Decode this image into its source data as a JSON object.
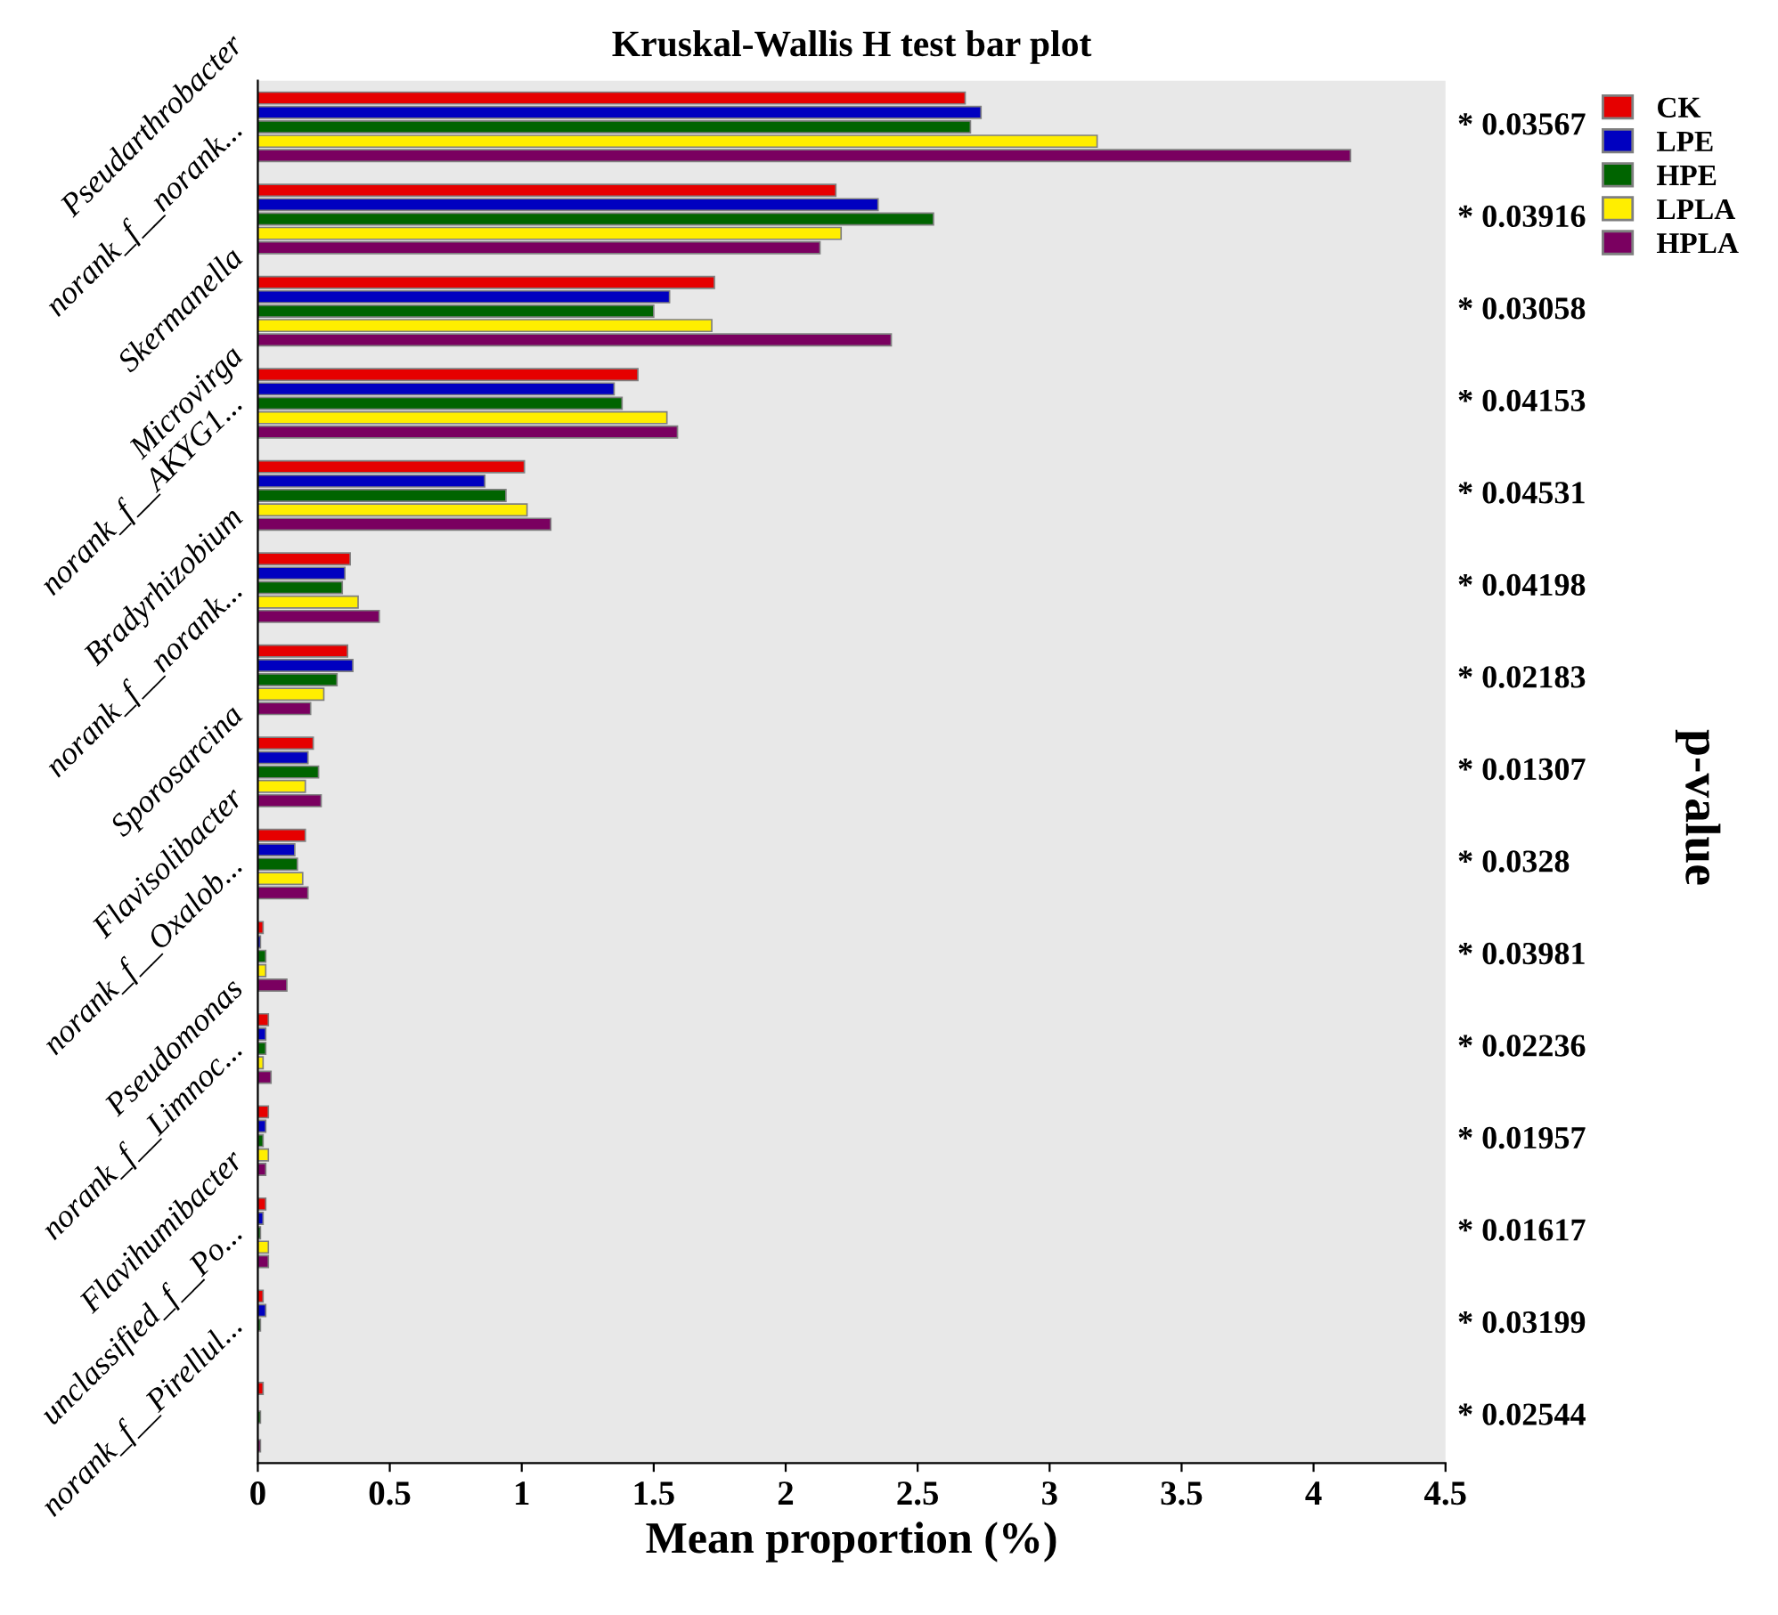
{
  "chart_data": {
    "type": "bar",
    "orientation": "horizontal",
    "title": "Kruskal-Wallis H test bar plot",
    "xlabel": "Mean proportion (%)",
    "y2label": "p-value",
    "categories": [
      "Pseudarthrobacter",
      "norank_f__norank...",
      "Skermanella",
      "Microvirga",
      "norank_f__AKYG1...",
      "Bradyrhizobium",
      "norank_f__norank...",
      "Sporosarcina",
      "Flavisolibacter",
      "norank_f__Oxalob...",
      "Pseudomonas",
      "norank_f__Limnoc...",
      "Flavihumibacter",
      "unclassified_f__Po...",
      "norank_f__Pirellul..."
    ],
    "series": [
      {
        "name": "CK",
        "color": "#e60000",
        "values": [
          2.68,
          2.19,
          1.73,
          1.44,
          1.01,
          0.35,
          0.34,
          0.21,
          0.18,
          0.02,
          0.04,
          0.04,
          0.03,
          0.02,
          0.02
        ]
      },
      {
        "name": "LPE",
        "color": "#0000c0",
        "values": [
          2.74,
          2.35,
          1.56,
          1.35,
          0.86,
          0.33,
          0.36,
          0.19,
          0.14,
          0.01,
          0.03,
          0.03,
          0.02,
          0.03,
          null
        ]
      },
      {
        "name": "HPE",
        "color": "#006400",
        "values": [
          2.7,
          2.56,
          1.5,
          1.38,
          0.94,
          0.32,
          0.3,
          0.23,
          0.15,
          0.03,
          0.03,
          0.02,
          0.01,
          0.01,
          0.01
        ]
      },
      {
        "name": "LPLA",
        "color": "#ffee00",
        "values": [
          3.18,
          2.21,
          1.72,
          1.55,
          1.02,
          0.38,
          0.25,
          0.18,
          0.17,
          0.03,
          0.02,
          0.04,
          0.04,
          null,
          null
        ]
      },
      {
        "name": "HPLA",
        "color": "#7a0060",
        "values": [
          4.14,
          2.13,
          2.4,
          1.59,
          1.11,
          0.46,
          0.2,
          0.24,
          0.19,
          0.11,
          0.05,
          0.03,
          0.04,
          null,
          0.01
        ]
      }
    ],
    "annotations": [
      "* 0.03567",
      "* 0.03916",
      "* 0.03058",
      "* 0.04153",
      "* 0.04531",
      "* 0.04198",
      "* 0.02183",
      "* 0.01307",
      "* 0.0328",
      "* 0.03981",
      "* 0.02236",
      "* 0.01957",
      "* 0.01617",
      "* 0.03199",
      "* 0.02544"
    ],
    "xlim": [
      0,
      4.5
    ],
    "xticks": [
      0,
      0.5,
      1,
      1.5,
      2,
      2.5,
      3,
      3.5,
      4,
      4.5
    ],
    "legend": "top right",
    "grid": false
  }
}
